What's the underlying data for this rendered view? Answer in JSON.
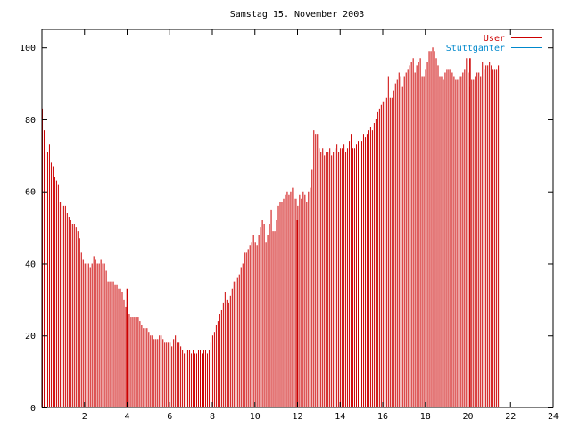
{
  "chart_data": {
    "type": "bar",
    "title": "Samstag 15. November 2003",
    "xlabel": "",
    "ylabel": "",
    "xlim": [
      0,
      24
    ],
    "ylim": [
      0,
      105
    ],
    "xticks": [
      2,
      4,
      6,
      8,
      10,
      12,
      14,
      16,
      18,
      20,
      22,
      24
    ],
    "yticks": [
      0,
      20,
      40,
      60,
      80,
      100
    ],
    "grid": false,
    "legend_position": "top-right",
    "series": [
      {
        "name": "User",
        "color": "#cc0000",
        "x_start": 0.0,
        "x_step": 0.0833,
        "values": [
          83,
          77,
          71,
          71,
          73,
          68,
          67,
          64,
          63,
          62,
          57,
          57,
          56,
          56,
          54,
          53,
          52,
          51,
          51,
          50,
          49,
          47,
          43,
          41,
          40,
          40,
          40,
          39,
          40,
          42,
          41,
          40,
          40,
          41,
          40,
          40,
          38,
          35,
          35,
          35,
          35,
          34,
          34,
          33,
          33,
          32,
          30,
          28,
          27,
          26,
          25,
          25,
          25,
          25,
          25,
          24,
          23,
          22,
          22,
          22,
          21,
          20,
          20,
          19,
          19,
          19,
          20,
          20,
          19,
          18,
          18,
          18,
          18,
          17,
          19,
          20,
          18,
          18,
          17,
          16,
          15,
          16,
          16,
          16,
          15,
          16,
          15,
          15,
          16,
          16,
          15,
          16,
          16,
          15,
          16,
          18,
          20,
          21,
          23,
          24,
          26,
          27,
          29,
          32,
          30,
          29,
          31,
          33,
          35,
          35,
          36,
          37,
          39,
          40,
          43,
          43,
          44,
          45,
          46,
          48,
          46,
          45,
          48,
          50,
          52,
          51,
          46,
          48,
          51,
          55,
          49,
          49,
          52,
          56,
          57,
          57,
          58,
          59,
          60,
          59,
          60,
          61,
          58,
          58,
          56,
          59,
          58,
          60,
          59,
          57,
          60,
          61,
          66,
          77,
          76,
          76,
          72,
          71,
          72,
          70,
          71,
          71,
          72,
          70,
          71,
          72,
          73,
          71,
          72,
          72,
          73,
          71,
          72,
          74,
          76,
          72,
          72,
          73,
          74,
          73,
          74,
          76,
          75,
          76,
          77,
          78,
          77,
          79,
          80,
          82,
          83,
          84,
          85,
          85,
          86,
          92,
          86,
          86,
          88,
          90,
          91,
          93,
          92,
          89,
          92,
          93,
          94,
          95,
          96,
          97,
          93,
          95,
          96,
          97,
          92,
          92,
          94,
          96,
          99,
          99,
          100,
          99,
          97,
          95,
          92,
          92,
          91,
          93,
          94,
          94,
          94,
          93,
          92,
          91,
          91,
          92,
          92,
          93,
          94,
          97,
          93,
          89,
          91,
          91,
          92,
          93,
          93,
          92,
          96,
          94,
          95,
          95,
          96,
          95,
          94,
          94,
          94,
          95
        ]
      },
      {
        "name": "Stuttganter",
        "color": "#0088cc",
        "x_start": 0.0,
        "x_step": 0.0833,
        "values": [
          0,
          0,
          0,
          0,
          0,
          0,
          0,
          0,
          0,
          0,
          0,
          0,
          0,
          0,
          0,
          0,
          0,
          0,
          0,
          0,
          0,
          0,
          0,
          0,
          0,
          0,
          0,
          0,
          0,
          0,
          0,
          0,
          0,
          0,
          0,
          0,
          0,
          0,
          0,
          0,
          0,
          0,
          0,
          0,
          0,
          0,
          0,
          0,
          0,
          0,
          0,
          0,
          0,
          0,
          0,
          0,
          0,
          0,
          0,
          0,
          0,
          0,
          0,
          0,
          0,
          0,
          0,
          0,
          0,
          0,
          0,
          0,
          0,
          0,
          0,
          0,
          0,
          0,
          0,
          0,
          0,
          0,
          0,
          0,
          0,
          0,
          0,
          0,
          0,
          0,
          0,
          0,
          0,
          0,
          0,
          0,
          0,
          0,
          0,
          0,
          0,
          0,
          0,
          0,
          0,
          0,
          0,
          0,
          0,
          0,
          0,
          0,
          0,
          0,
          0,
          0,
          0,
          0,
          0,
          0,
          0,
          0,
          0,
          0,
          0,
          0,
          0,
          0,
          0,
          0,
          0,
          0,
          0,
          0,
          0,
          0,
          0,
          0,
          0,
          0,
          0,
          0,
          0,
          0,
          0,
          0,
          0,
          0,
          0,
          0,
          0,
          0,
          0,
          0,
          0,
          0,
          0,
          0,
          0,
          0,
          0,
          0,
          0,
          0,
          0,
          0,
          0,
          0,
          0,
          0,
          0,
          0,
          0,
          0,
          0,
          0,
          0,
          0,
          0,
          0,
          0,
          0,
          0,
          0,
          0,
          0,
          0,
          0,
          0,
          0,
          0,
          0,
          0,
          0,
          0,
          0,
          0,
          0,
          0,
          0,
          0,
          0,
          0,
          0,
          0,
          0,
          0,
          0,
          0,
          0,
          0,
          0,
          0,
          0,
          0,
          0,
          0,
          0,
          0,
          0,
          0,
          0,
          0,
          0,
          0,
          0,
          0,
          0,
          0,
          0,
          0,
          0,
          0,
          0,
          0,
          0,
          0,
          0,
          0,
          0,
          0,
          0,
          0,
          0,
          0,
          0,
          0,
          0,
          0,
          0,
          0,
          0,
          0,
          0,
          0,
          0,
          0,
          0,
          0,
          0,
          0,
          0,
          0,
          0,
          0,
          0,
          0,
          0,
          0,
          0,
          0
        ]
      }
    ],
    "spikes": [
      {
        "x": 4.0,
        "value": 33
      },
      {
        "x": 12.0,
        "value": 52
      },
      {
        "x": 20.1,
        "value": 97
      }
    ]
  }
}
